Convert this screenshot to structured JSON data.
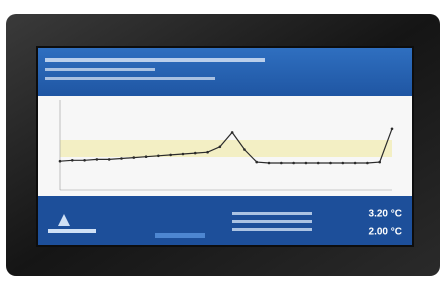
{
  "screen": {
    "readouts": [
      "3.20 °C",
      "2.00 °C"
    ],
    "chart": {
      "type": "line",
      "color": "#2b2b2b",
      "values": [
        3.2,
        3.3,
        3.3,
        3.4,
        3.4,
        3.5,
        3.6,
        3.7,
        3.8,
        3.9,
        4.0,
        4.1,
        4.2,
        4.8,
        6.4,
        4.5,
        3.1,
        3.0,
        3.0,
        3.0,
        3.0,
        3.0,
        3.0,
        3.0,
        3.0,
        3.0,
        3.1,
        6.8
      ],
      "ylim": [
        0,
        10
      ]
    }
  }
}
